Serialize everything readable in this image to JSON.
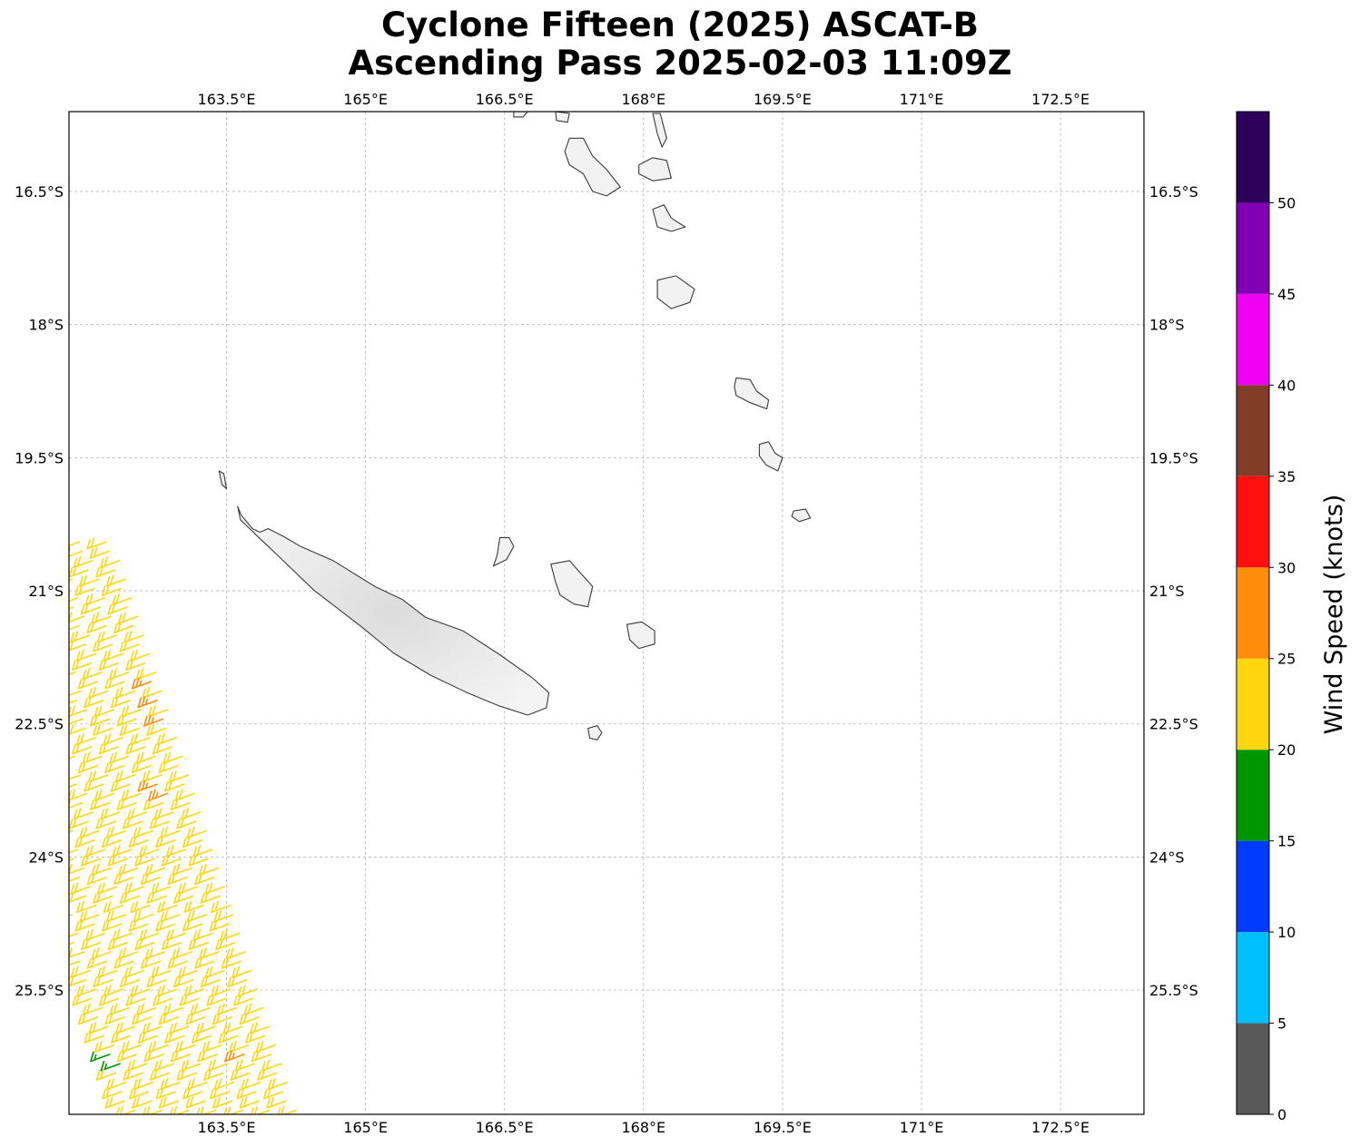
{
  "title_line1": "Cyclone Fifteen (2025) ASCAT-B",
  "title_line2": "Ascending Pass 2025-02-03 11:09Z",
  "map": {
    "lon_range": [
      161.8,
      173.4
    ],
    "lat_range": [
      -26.9,
      -15.6
    ],
    "lon_ticks": [
      {
        "value": 163.5,
        "label": "163.5°E"
      },
      {
        "value": 165.0,
        "label": "165°E"
      },
      {
        "value": 166.5,
        "label": "166.5°E"
      },
      {
        "value": 168.0,
        "label": "168°E"
      },
      {
        "value": 169.5,
        "label": "169.5°E"
      },
      {
        "value": 171.0,
        "label": "171°E"
      },
      {
        "value": 172.5,
        "label": "172.5°E"
      }
    ],
    "lat_ticks": [
      {
        "value": -16.5,
        "label": "16.5°S"
      },
      {
        "value": -18.0,
        "label": "18°S"
      },
      {
        "value": -19.5,
        "label": "19.5°S"
      },
      {
        "value": -21.0,
        "label": "21°S"
      },
      {
        "value": -22.5,
        "label": "22.5°S"
      },
      {
        "value": -24.0,
        "label": "24°S"
      },
      {
        "value": -25.5,
        "label": "25.5°S"
      }
    ],
    "gridlines": true,
    "land_color": "#f2f2f2",
    "coast_color": "#3a3a3a"
  },
  "colorbar": {
    "label": "Wind Speed (knots)",
    "tick_labels": [
      "0",
      "5",
      "10",
      "15",
      "20",
      "25",
      "30",
      "35",
      "40",
      "45",
      "50"
    ],
    "segments": [
      {
        "min": 0,
        "max": 5,
        "color": "#595959"
      },
      {
        "min": 5,
        "max": 10,
        "color": "#00bfff"
      },
      {
        "min": 10,
        "max": 15,
        "color": "#003cff"
      },
      {
        "min": 15,
        "max": 20,
        "color": "#009600"
      },
      {
        "min": 20,
        "max": 25,
        "color": "#ffd60f"
      },
      {
        "min": 25,
        "max": 30,
        "color": "#ff8c0a"
      },
      {
        "min": 30,
        "max": 35,
        "color": "#ff0f0f"
      },
      {
        "min": 35,
        "max": 40,
        "color": "#823d28"
      },
      {
        "min": 40,
        "max": 45,
        "color": "#f000f0"
      },
      {
        "min": 45,
        "max": 50,
        "color": "#8200b4"
      },
      {
        "min": 50,
        "max": 55,
        "color": "#2e005a"
      }
    ]
  },
  "wind_swath": {
    "edge": [
      [
        162.2,
        -20.45
      ],
      [
        164.0,
        -26.3
      ]
    ],
    "columns": 7,
    "typical_speed_kt": 22,
    "highlight_speed_kt": 27,
    "highlight_points": [
      [
        162.6,
        -21.95
      ],
      [
        162.7,
        -22.2
      ],
      [
        162.75,
        -22.4
      ],
      [
        162.8,
        -23.25
      ],
      [
        163.7,
        -26.3
      ]
    ],
    "low_speed_points": [
      [
        162.3,
        -26.3
      ]
    ],
    "low_speed_kt": 18
  },
  "islands": [
    {
      "name": "new-caledonia",
      "coords": [
        [
          163.62,
          -20.05
        ],
        [
          163.66,
          -20.15
        ],
        [
          163.78,
          -20.3
        ],
        [
          163.86,
          -20.34
        ],
        [
          163.95,
          -20.3
        ],
        [
          164.1,
          -20.38
        ],
        [
          164.3,
          -20.5
        ],
        [
          164.65,
          -20.66
        ],
        [
          165.1,
          -20.95
        ],
        [
          165.4,
          -21.1
        ],
        [
          165.65,
          -21.3
        ],
        [
          166.05,
          -21.45
        ],
        [
          166.45,
          -21.72
        ],
        [
          166.8,
          -21.98
        ],
        [
          166.98,
          -22.15
        ],
        [
          166.95,
          -22.32
        ],
        [
          166.75,
          -22.4
        ],
        [
          166.45,
          -22.3
        ],
        [
          166.1,
          -22.15
        ],
        [
          165.7,
          -21.95
        ],
        [
          165.3,
          -21.7
        ],
        [
          164.95,
          -21.4
        ],
        [
          164.7,
          -21.2
        ],
        [
          164.45,
          -21.0
        ],
        [
          164.25,
          -20.8
        ],
        [
          164.05,
          -20.6
        ],
        [
          163.9,
          -20.45
        ],
        [
          163.75,
          -20.3
        ],
        [
          163.65,
          -20.2
        ]
      ]
    },
    {
      "name": "ile-des-pins",
      "coords": [
        [
          167.4,
          -22.55
        ],
        [
          167.5,
          -22.52
        ],
        [
          167.55,
          -22.6
        ],
        [
          167.5,
          -22.68
        ],
        [
          167.42,
          -22.66
        ]
      ]
    },
    {
      "name": "lifou",
      "coords": [
        [
          167.0,
          -20.7
        ],
        [
          167.2,
          -20.66
        ],
        [
          167.32,
          -20.8
        ],
        [
          167.45,
          -20.95
        ],
        [
          167.4,
          -21.18
        ],
        [
          167.25,
          -21.15
        ],
        [
          167.1,
          -21.05
        ],
        [
          167.05,
          -20.9
        ]
      ]
    },
    {
      "name": "mare",
      "coords": [
        [
          167.82,
          -21.38
        ],
        [
          167.98,
          -21.35
        ],
        [
          168.12,
          -21.45
        ],
        [
          168.12,
          -21.6
        ],
        [
          167.95,
          -21.65
        ],
        [
          167.85,
          -21.55
        ]
      ]
    },
    {
      "name": "ouvea",
      "coords": [
        [
          166.45,
          -20.4
        ],
        [
          166.55,
          -20.4
        ],
        [
          166.6,
          -20.5
        ],
        [
          166.52,
          -20.65
        ],
        [
          166.38,
          -20.72
        ],
        [
          166.42,
          -20.6
        ]
      ]
    },
    {
      "name": "belep",
      "coords": [
        [
          163.42,
          -19.65
        ],
        [
          163.47,
          -19.68
        ],
        [
          163.5,
          -19.85
        ],
        [
          163.45,
          -19.8
        ]
      ]
    },
    {
      "name": "aneityum",
      "coords": [
        [
          169.62,
          -20.1
        ],
        [
          169.75,
          -20.08
        ],
        [
          169.8,
          -20.18
        ],
        [
          169.68,
          -20.22
        ],
        [
          169.6,
          -20.16
        ]
      ]
    },
    {
      "name": "tanna",
      "coords": [
        [
          169.25,
          -19.35
        ],
        [
          169.35,
          -19.32
        ],
        [
          169.42,
          -19.45
        ],
        [
          169.5,
          -19.5
        ],
        [
          169.45,
          -19.65
        ],
        [
          169.32,
          -19.58
        ],
        [
          169.25,
          -19.48
        ]
      ]
    },
    {
      "name": "erromango",
      "coords": [
        [
          169.0,
          -18.6
        ],
        [
          169.15,
          -18.62
        ],
        [
          169.22,
          -18.75
        ],
        [
          169.35,
          -18.85
        ],
        [
          169.33,
          -18.95
        ],
        [
          169.15,
          -18.88
        ],
        [
          169.0,
          -18.8
        ],
        [
          168.98,
          -18.7
        ]
      ]
    },
    {
      "name": "efate",
      "coords": [
        [
          168.15,
          -17.5
        ],
        [
          168.35,
          -17.45
        ],
        [
          168.55,
          -17.6
        ],
        [
          168.5,
          -17.75
        ],
        [
          168.3,
          -17.82
        ],
        [
          168.15,
          -17.7
        ]
      ]
    },
    {
      "name": "malakula",
      "coords": [
        [
          167.2,
          -15.9
        ],
        [
          167.35,
          -15.9
        ],
        [
          167.45,
          -16.1
        ],
        [
          167.6,
          -16.25
        ],
        [
          167.75,
          -16.45
        ],
        [
          167.6,
          -16.55
        ],
        [
          167.45,
          -16.5
        ],
        [
          167.35,
          -16.3
        ],
        [
          167.2,
          -16.2
        ],
        [
          167.15,
          -16.05
        ]
      ]
    },
    {
      "name": "ambrym",
      "coords": [
        [
          167.95,
          -16.2
        ],
        [
          168.1,
          -16.12
        ],
        [
          168.25,
          -16.15
        ],
        [
          168.3,
          -16.35
        ],
        [
          168.1,
          -16.38
        ],
        [
          167.95,
          -16.3
        ]
      ]
    },
    {
      "name": "epi",
      "coords": [
        [
          168.1,
          -16.7
        ],
        [
          168.22,
          -16.65
        ],
        [
          168.3,
          -16.8
        ],
        [
          168.45,
          -16.9
        ],
        [
          168.3,
          -16.95
        ],
        [
          168.15,
          -16.9
        ]
      ]
    },
    {
      "name": "pentecost",
      "coords": [
        [
          168.1,
          -15.62
        ],
        [
          168.18,
          -15.62
        ],
        [
          168.25,
          -15.9
        ],
        [
          168.2,
          -16.0
        ],
        [
          168.15,
          -15.85
        ]
      ]
    },
    {
      "name": "espiritu-santo-tip",
      "coords": [
        [
          166.6,
          -15.6
        ],
        [
          166.75,
          -15.6
        ],
        [
          166.7,
          -15.66
        ],
        [
          166.6,
          -15.66
        ]
      ]
    },
    {
      "name": "islet-north",
      "coords": [
        [
          167.05,
          -15.6
        ],
        [
          167.2,
          -15.62
        ],
        [
          167.18,
          -15.72
        ],
        [
          167.06,
          -15.7
        ]
      ]
    }
  ]
}
